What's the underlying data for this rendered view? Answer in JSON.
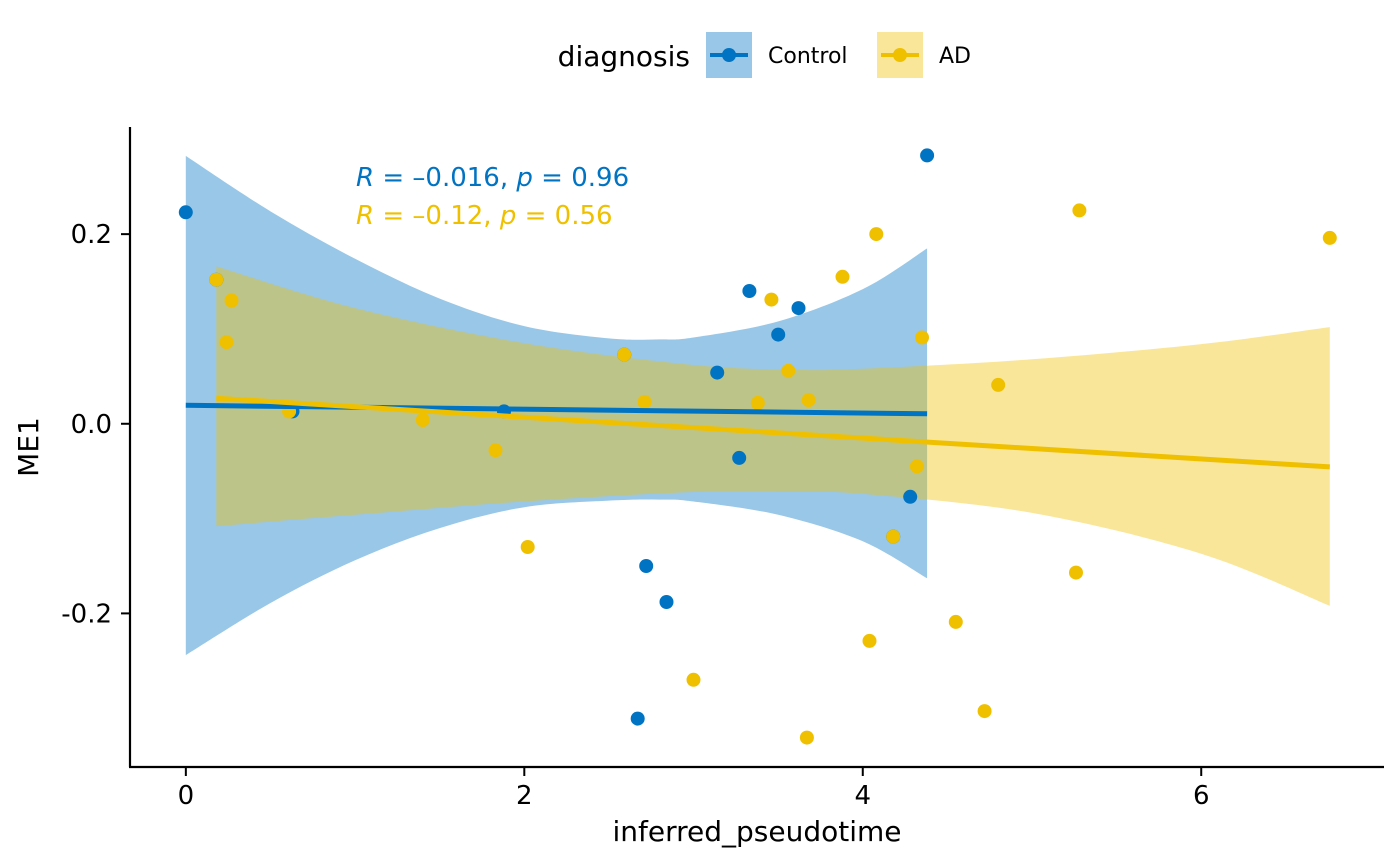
{
  "chart_data": {
    "type": "scatter",
    "xlabel": "inferred_pseudotime",
    "ylabel": "ME1",
    "xlim": [
      -0.33,
      7.08
    ],
    "ylim": [
      -0.362,
      0.313
    ],
    "xticks": [
      0,
      2,
      4,
      6
    ],
    "xtick_labels": [
      "0",
      "2",
      "4",
      "6"
    ],
    "yticks": [
      -0.2,
      0.0,
      0.2
    ],
    "ytick_labels": [
      "-0.2",
      "0.0",
      "0.2"
    ],
    "grid": false,
    "legend": {
      "position": "top",
      "title": "diagnosis",
      "entries": [
        "Control",
        "AD"
      ]
    },
    "annotations": [
      {
        "R": "–0.016",
        "p": "0.96",
        "color": "#0073C2"
      },
      {
        "R": "–0.12",
        "p": "0.56",
        "color": "#EFC000"
      }
    ],
    "series": [
      {
        "name": "Control",
        "color": "#0073C2",
        "fill": "#0073C2",
        "points": [
          [
            0.0,
            0.223
          ],
          [
            0.18,
            0.152
          ],
          [
            0.63,
            0.013
          ],
          [
            1.88,
            0.013
          ],
          [
            2.59,
            0.073
          ],
          [
            2.67,
            -0.311
          ],
          [
            2.72,
            -0.15
          ],
          [
            2.84,
            -0.188
          ],
          [
            3.14,
            0.054
          ],
          [
            3.27,
            -0.036
          ],
          [
            3.33,
            0.14
          ],
          [
            3.5,
            0.094
          ],
          [
            3.62,
            0.122
          ],
          [
            4.18,
            -0.119
          ],
          [
            4.28,
            -0.077
          ],
          [
            4.38,
            0.283
          ]
        ],
        "fit": {
          "x": [
            0.0,
            4.38
          ],
          "y": [
            0.0195,
            0.0105
          ]
        },
        "ci": {
          "x": [
            0.0,
            0.5,
            1.0,
            1.5,
            2.0,
            2.5,
            2.8,
            3.0,
            3.5,
            4.0,
            4.38
          ],
          "upper": [
            0.2825,
            0.224,
            0.174,
            0.132,
            0.103,
            0.09,
            0.089,
            0.091,
            0.108,
            0.142,
            0.185
          ],
          "lower": [
            -0.244,
            -0.189,
            -0.144,
            -0.11,
            -0.088,
            -0.081,
            -0.08,
            -0.082,
            -0.096,
            -0.124,
            -0.163
          ]
        }
      },
      {
        "name": "AD",
        "color": "#EFC000",
        "fill": "#EFC000",
        "points": [
          [
            0.18,
            0.152
          ],
          [
            0.24,
            0.086
          ],
          [
            0.27,
            0.13
          ],
          [
            0.61,
            0.013
          ],
          [
            1.4,
            0.004
          ],
          [
            1.83,
            -0.028
          ],
          [
            2.02,
            -0.13
          ],
          [
            2.59,
            0.073
          ],
          [
            2.71,
            0.023
          ],
          [
            3.0,
            -0.27
          ],
          [
            3.38,
            0.022
          ],
          [
            3.46,
            0.131
          ],
          [
            3.56,
            0.056
          ],
          [
            3.67,
            -0.331
          ],
          [
            3.68,
            0.025
          ],
          [
            3.88,
            0.155
          ],
          [
            4.04,
            -0.229
          ],
          [
            4.08,
            0.2
          ],
          [
            4.18,
            -0.119
          ],
          [
            4.32,
            -0.045
          ],
          [
            4.35,
            0.091
          ],
          [
            4.55,
            -0.209
          ],
          [
            4.72,
            -0.303
          ],
          [
            4.8,
            0.041
          ],
          [
            5.26,
            -0.157
          ],
          [
            5.28,
            0.225
          ],
          [
            6.76,
            0.196
          ]
        ],
        "fit": {
          "x": [
            0.18,
            6.76
          ],
          "y": [
            0.027,
            -0.0455
          ]
        },
        "ci": {
          "x": [
            0.18,
            1.0,
            2.0,
            3.0,
            3.6,
            4.0,
            5.0,
            6.0,
            6.76
          ],
          "upper": [
            0.166,
            0.122,
            0.085,
            0.062,
            0.057,
            0.058,
            0.068,
            0.084,
            0.102
          ],
          "lower": [
            -0.108,
            -0.096,
            -0.082,
            -0.072,
            -0.072,
            -0.074,
            -0.094,
            -0.137,
            -0.192
          ]
        }
      }
    ]
  }
}
